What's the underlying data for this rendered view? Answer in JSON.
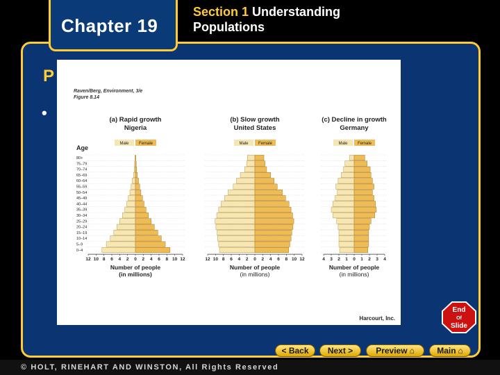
{
  "header": {
    "chapter": "Chapter 19",
    "section_label": "Section 1",
    "section_title": "Understanding Populations"
  },
  "slide": {
    "heading_partial": "P",
    "bullet": "•"
  },
  "figure": {
    "credit_line1": "Raven/Berg, Environment, 3/e",
    "credit_line2": "Figure 8.14",
    "publisher": "Harcourt, Inc.",
    "age_axis_label": "Age",
    "male_label": "Male",
    "female_label": "Female",
    "xlabel_line1": "Number of people",
    "xlabel_line2": "(in millions)",
    "age_groups": [
      "80+",
      "75–79",
      "70–74",
      "65–69",
      "60–64",
      "55–59",
      "50–54",
      "45–49",
      "40–44",
      "35–39",
      "30–34",
      "25–29",
      "20–24",
      "15–19",
      "10–14",
      "5–9",
      "0–4"
    ],
    "panels": [
      {
        "title": "(a) Rapid growth",
        "country": "Nigeria",
        "ticks": [
          "12",
          "10",
          "8",
          "6",
          "4",
          "2",
          "0",
          "2",
          "4",
          "6",
          "8",
          "10",
          "12"
        ],
        "male": [
          0.1,
          0.2,
          0.3,
          0.5,
          0.8,
          1.1,
          1.4,
          1.8,
          2.2,
          2.7,
          3.3,
          4.0,
          4.7,
          5.5,
          6.4,
          7.4,
          8.5
        ],
        "female": [
          0.1,
          0.2,
          0.3,
          0.5,
          0.8,
          1.1,
          1.4,
          1.8,
          2.2,
          2.7,
          3.3,
          4.0,
          4.8,
          5.7,
          6.6,
          7.6,
          8.8
        ]
      },
      {
        "title": "(b) Slow growth",
        "country": "United States",
        "ticks": [
          "12",
          "10",
          "8",
          "6",
          "4",
          "2",
          "0",
          "2",
          "4",
          "6",
          "8",
          "10",
          "12"
        ],
        "male": [
          1.9,
          2.1,
          2.6,
          3.7,
          4.7,
          5.5,
          6.8,
          7.7,
          8.6,
          9.2,
          9.7,
          10.1,
          9.9,
          9.6,
          9.5,
          9.2,
          9.0
        ],
        "female": [
          2.3,
          2.6,
          3.0,
          4.0,
          4.9,
          5.7,
          7.0,
          7.8,
          8.7,
          9.2,
          9.6,
          9.9,
          9.7,
          9.4,
          9.2,
          8.9,
          8.6
        ]
      },
      {
        "title": "(c) Decline in growth",
        "country": "Germany",
        "ticks": [
          "4",
          "3",
          "2",
          "1",
          "0",
          "1",
          "2",
          "3",
          "4"
        ],
        "male": [
          0.6,
          1.2,
          1.4,
          1.7,
          2.1,
          2.4,
          2.2,
          2.5,
          2.8,
          3.0,
          2.8,
          2.3,
          2.1,
          2.0,
          2.0,
          2.0,
          1.9
        ],
        "female": [
          1.4,
          1.7,
          2.1,
          2.2,
          2.4,
          2.6,
          2.4,
          2.6,
          2.8,
          2.9,
          2.7,
          2.2,
          2.0,
          1.9,
          1.9,
          1.9,
          1.8
        ]
      }
    ]
  },
  "end_button": {
    "line1": "End",
    "line2": "Of",
    "line3": "Slide"
  },
  "nav": {
    "back": "< Back",
    "next": "Next >",
    "preview": "Preview",
    "main": "Main"
  },
  "footer": {
    "copyright": "© HOLT, RINEHART AND WINSTON, All Rights Reserved"
  }
}
